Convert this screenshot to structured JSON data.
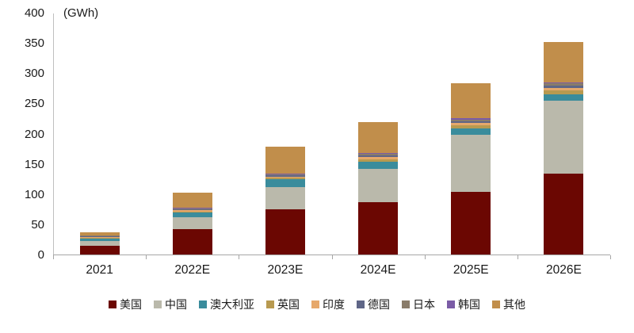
{
  "chart_data": {
    "type": "bar",
    "stacked": true,
    "unit_label": "(GWh)",
    "categories": [
      "2021",
      "2022E",
      "2023E",
      "2024E",
      "2025E",
      "2026E"
    ],
    "series": [
      {
        "name": "美国",
        "color": "#6B0702",
        "values": [
          15,
          42,
          75,
          86,
          103,
          134
        ]
      },
      {
        "name": "中国",
        "color": "#BAB9AB",
        "values": [
          7,
          20,
          37,
          56,
          95,
          120
        ]
      },
      {
        "name": "澳大利亚",
        "color": "#3A8C9C",
        "values": [
          4,
          7,
          12,
          12,
          11,
          11
        ]
      },
      {
        "name": "英国",
        "color": "#B89A50",
        "values": [
          2,
          2.5,
          3,
          4,
          5,
          6
        ]
      },
      {
        "name": "印度",
        "color": "#E6A86B",
        "values": [
          1,
          1.5,
          2,
          3,
          4,
          5
        ]
      },
      {
        "name": "德国",
        "color": "#5F6687",
        "values": [
          1,
          1.5,
          2,
          3,
          3,
          4
        ]
      },
      {
        "name": "日本",
        "color": "#8A7C6A",
        "values": [
          1,
          1.5,
          2,
          2,
          2,
          3
        ]
      },
      {
        "name": "韩国",
        "color": "#7B5CA6",
        "values": [
          0.5,
          1,
          1,
          2,
          2,
          2
        ]
      },
      {
        "name": "其他",
        "color": "#C18E4B",
        "values": [
          5.5,
          26,
          44,
          51,
          58,
          66
        ]
      }
    ],
    "totals": [
      37,
      103,
      178,
      219,
      283,
      351
    ],
    "ylim": [
      0,
      400
    ],
    "yticks": [
      0,
      50,
      100,
      150,
      200,
      250,
      300,
      350,
      400
    ],
    "grid": false,
    "legend_position": "bottom"
  }
}
